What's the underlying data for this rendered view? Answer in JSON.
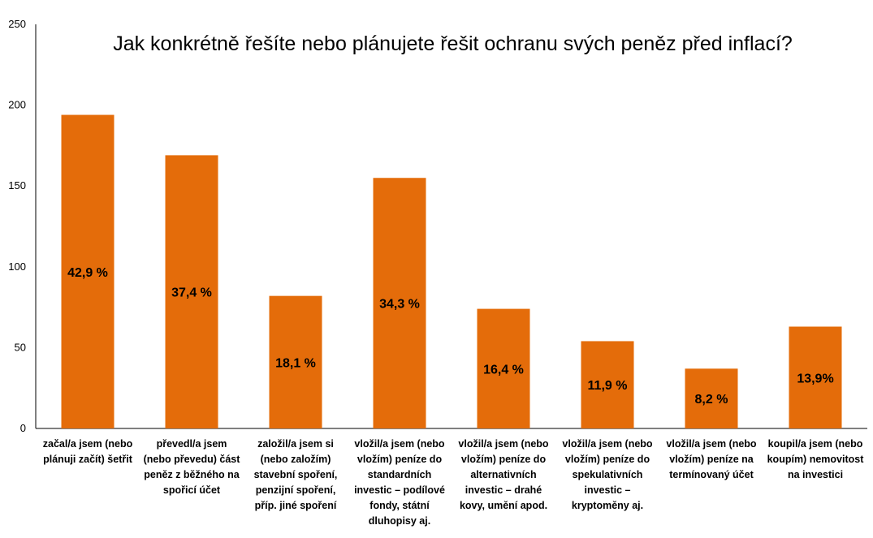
{
  "chart_data": {
    "type": "bar",
    "title": "Jak konkrétně řešíte nebo plánujete řešit ochranu svých peněz před inflací?",
    "xlabel": "",
    "ylabel": "",
    "ylim": [
      0,
      250
    ],
    "yticks": [
      0,
      50,
      100,
      150,
      200,
      250
    ],
    "grid": false,
    "bar_color": "#E46C0A",
    "categories": [
      "začal/a jsem (nebo plánuji začít) šetřit",
      "převedl/a jsem (nebo převedu) část peněz z běžného na spořicí účet",
      "založil/a jsem si (nebo založím) stavební spoření, penzijní spoření, příp. jiné spoření",
      "vložil/a jsem (nebo vložím) peníze do standardních investic – podílové fondy, státní dluhopisy aj.",
      "vložil/a jsem (nebo vložím) peníze do alternativních investic – drahé kovy, umění apod.",
      "vložil/a jsem (nebo vložím) peníze do spekulativních investic – kryptoměny aj.",
      "vložil/a jsem (nebo vložím) peníze na termínovaný účet",
      "koupil/a jsem (nebo koupím) nemovitost na investici"
    ],
    "values": [
      194,
      169,
      82,
      155,
      74,
      54,
      37,
      63
    ],
    "data_labels": [
      "42,9 %",
      "37,4 %",
      "18,1 %",
      "34,3 %",
      "16,4 %",
      "11,9 %",
      "8,2 %",
      "13,9%"
    ]
  }
}
